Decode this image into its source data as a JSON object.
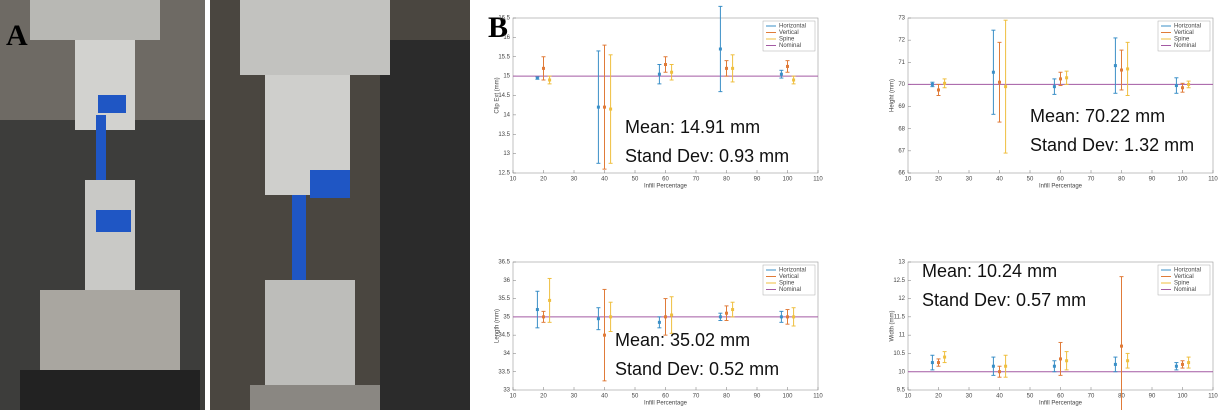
{
  "panels": {
    "a": "A",
    "b": "B"
  },
  "chart_data": [
    {
      "type": "errorbar",
      "xlabel": "Infill Percentage",
      "ylabel": "Clip Ext (mm)",
      "xlim": [
        10,
        110
      ],
      "xticks": [
        10,
        20,
        30,
        40,
        50,
        60,
        70,
        80,
        90,
        100,
        110
      ],
      "ylim": [
        12.5,
        16.5
      ],
      "yticks": [
        12.5,
        13,
        13.5,
        14,
        14.5,
        15,
        15.5,
        16,
        16.5
      ],
      "series": [
        {
          "name": "Horizontal",
          "color": "#3a8fc7",
          "x": [
            18,
            38,
            58,
            78,
            98
          ],
          "values": [
            14.95,
            14.2,
            15.05,
            15.7,
            15.05
          ],
          "errors": [
            0.03,
            1.45,
            0.25,
            1.1,
            0.1
          ]
        },
        {
          "name": "Vertical",
          "color": "#e07b39",
          "x": [
            20,
            40,
            60,
            80,
            100
          ],
          "values": [
            15.2,
            14.2,
            15.3,
            15.2,
            15.25
          ],
          "errors": [
            0.3,
            1.6,
            0.2,
            0.2,
            0.15
          ]
        },
        {
          "name": "Spine",
          "color": "#efbf3f",
          "x": [
            22,
            42,
            62,
            82,
            102
          ],
          "values": [
            14.9,
            14.15,
            15.1,
            15.2,
            14.9
          ],
          "errors": [
            0.1,
            1.4,
            0.2,
            0.35,
            0.1
          ]
        }
      ],
      "reference": {
        "name": "Nominal",
        "color": "#a35aa3",
        "value": 15
      },
      "annotations": [
        "Mean: 14.91 mm",
        "Stand Dev: 0.93 mm"
      ]
    },
    {
      "type": "errorbar",
      "xlabel": "Infill Percentage",
      "ylabel": "Height (mm)",
      "xlim": [
        10,
        110
      ],
      "xticks": [
        10,
        20,
        30,
        40,
        50,
        60,
        70,
        80,
        90,
        100,
        110
      ],
      "ylim": [
        66,
        73
      ],
      "yticks": [
        66,
        67,
        68,
        69,
        70,
        71,
        72,
        73
      ],
      "series": [
        {
          "name": "Horizontal",
          "color": "#3a8fc7",
          "x": [
            18,
            38,
            58,
            78,
            98
          ],
          "values": [
            70.0,
            70.55,
            69.9,
            70.85,
            69.95
          ],
          "errors": [
            0.1,
            1.9,
            0.35,
            1.25,
            0.35
          ]
        },
        {
          "name": "Vertical",
          "color": "#e07b39",
          "x": [
            20,
            40,
            60,
            80,
            100
          ],
          "values": [
            69.75,
            70.1,
            70.25,
            70.65,
            69.85
          ],
          "errors": [
            0.25,
            1.8,
            0.3,
            0.9,
            0.2
          ]
        },
        {
          "name": "Spine",
          "color": "#efbf3f",
          "x": [
            22,
            42,
            62,
            82,
            102
          ],
          "values": [
            70.05,
            69.9,
            70.3,
            70.7,
            70.0
          ],
          "errors": [
            0.2,
            3.0,
            0.3,
            1.2,
            0.15
          ]
        }
      ],
      "reference": {
        "name": "Nominal",
        "color": "#a35aa3",
        "value": 70
      },
      "annotations": [
        "Mean: 70.22 mm",
        "Stand Dev: 1.32 mm"
      ]
    },
    {
      "type": "errorbar",
      "xlabel": "Infill Percentage",
      "ylabel": "Length (mm)",
      "xlim": [
        10,
        110
      ],
      "xticks": [
        10,
        20,
        30,
        40,
        50,
        60,
        70,
        80,
        90,
        100,
        110
      ],
      "ylim": [
        33,
        36.5
      ],
      "yticks": [
        33,
        33.5,
        34,
        34.5,
        35,
        35.5,
        36,
        36.5
      ],
      "series": [
        {
          "name": "Horizontal",
          "color": "#3a8fc7",
          "x": [
            18,
            38,
            58,
            78,
            98
          ],
          "values": [
            35.2,
            34.95,
            34.85,
            35.0,
            35.0
          ],
          "errors": [
            0.5,
            0.3,
            0.15,
            0.1,
            0.15
          ]
        },
        {
          "name": "Vertical",
          "color": "#e07b39",
          "x": [
            20,
            40,
            60,
            80,
            100
          ],
          "values": [
            35.0,
            34.5,
            35.0,
            35.1,
            35.0
          ],
          "errors": [
            0.15,
            1.25,
            0.5,
            0.2,
            0.2
          ]
        },
        {
          "name": "Spine",
          "color": "#efbf3f",
          "x": [
            22,
            42,
            62,
            82,
            102
          ],
          "values": [
            35.45,
            35.0,
            35.05,
            35.2,
            35.0
          ],
          "errors": [
            0.6,
            0.4,
            0.5,
            0.2,
            0.25
          ]
        }
      ],
      "reference": {
        "name": "Nominal",
        "color": "#a35aa3",
        "value": 35
      },
      "annotations": [
        "Mean: 35.02 mm",
        "Stand Dev: 0.52 mm"
      ]
    },
    {
      "type": "errorbar",
      "xlabel": "Infill Percentage",
      "ylabel": "Width (mm)",
      "xlim": [
        10,
        110
      ],
      "xticks": [
        10,
        20,
        30,
        40,
        50,
        60,
        70,
        80,
        90,
        100,
        110
      ],
      "ylim": [
        9.5,
        13
      ],
      "yticks": [
        9.5,
        10,
        10.5,
        11,
        11.5,
        12,
        12.5,
        13
      ],
      "series": [
        {
          "name": "Horizontal",
          "color": "#3a8fc7",
          "x": [
            18,
            38,
            58,
            78,
            98
          ],
          "values": [
            10.25,
            10.15,
            10.15,
            10.2,
            10.15
          ],
          "errors": [
            0.2,
            0.25,
            0.15,
            0.2,
            0.1
          ]
        },
        {
          "name": "Vertical",
          "color": "#e07b39",
          "x": [
            20,
            40,
            60,
            80,
            100
          ],
          "values": [
            10.25,
            10.0,
            10.35,
            10.7,
            10.2
          ],
          "errors": [
            0.1,
            0.15,
            0.45,
            1.9,
            0.1
          ]
        },
        {
          "name": "Spine",
          "color": "#efbf3f",
          "x": [
            22,
            42,
            62,
            82,
            102
          ],
          "values": [
            10.4,
            10.15,
            10.3,
            10.3,
            10.25
          ],
          "errors": [
            0.15,
            0.3,
            0.25,
            0.2,
            0.15
          ]
        }
      ],
      "reference": {
        "name": "Nominal",
        "color": "#a35aa3",
        "value": 10
      },
      "annotations": [
        "Mean: 10.24 mm",
        "Stand Dev: 0.57 mm"
      ]
    }
  ]
}
